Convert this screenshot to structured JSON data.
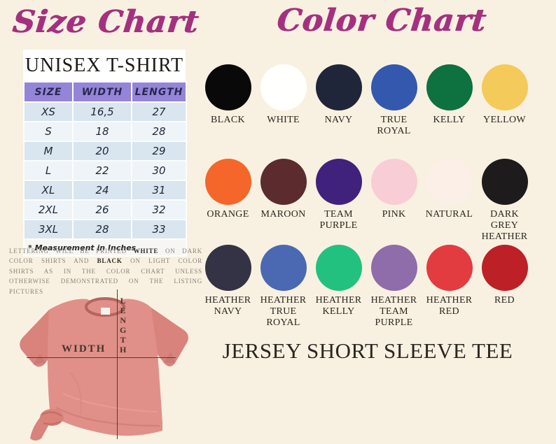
{
  "page": {
    "background": "#f8f1e1",
    "accent_magenta": "#a5307f"
  },
  "size_chart": {
    "title": "Size Chart",
    "product_type": "UNISEX T-SHIRT",
    "table": {
      "headers": [
        "SIZE",
        "WIDTH",
        "LENGTH"
      ],
      "rows": [
        [
          "XS",
          "16,5",
          "27"
        ],
        [
          "S",
          "18",
          "28"
        ],
        [
          "M",
          "20",
          "29"
        ],
        [
          "L",
          "22",
          "30"
        ],
        [
          "XL",
          "24",
          "31"
        ],
        [
          "2XL",
          "26",
          "32"
        ],
        [
          "3XL",
          "28",
          "33"
        ]
      ],
      "footnote": "* Measurement in Inches",
      "header_bg": "#9585d9",
      "row_colors": [
        "#d9e5ef",
        "#eef4f8"
      ]
    },
    "note": {
      "p1": "Lettering will be printed ",
      "bold1": "white",
      "p2": " on dark color shirts and ",
      "bold2": "black",
      "p3": " on light color shirts as in the color chart unless otherwise demonstrated on the listing pictures"
    }
  },
  "tshirt": {
    "width_label": "WIDTH",
    "length_label": "LENGTH",
    "shirt_color": "#e09089"
  },
  "color_chart": {
    "title": "Color Chart",
    "rows": [
      [
        {
          "name": "BLACK",
          "hex": "#090909"
        },
        {
          "name": "WHITE",
          "hex": "#fffffd"
        },
        {
          "name": "NAVY",
          "hex": "#202639"
        },
        {
          "name": "TRUE ROYAL",
          "hex": "#3458ae"
        },
        {
          "name": "KELLY",
          "hex": "#0d7140"
        },
        {
          "name": "YELLOW",
          "hex": "#f4ca5a"
        }
      ],
      [
        {
          "name": "ORANGE",
          "hex": "#f4662a"
        },
        {
          "name": "MAROON",
          "hex": "#5b2b2e"
        },
        {
          "name": "TEAM PURPLE",
          "hex": "#40217c"
        },
        {
          "name": "PINK",
          "hex": "#f9cdd5"
        },
        {
          "name": "NATURAL",
          "hex": "#fbefe8"
        },
        {
          "name": "DARK GREY HEATHER",
          "hex": "#1d1b1b"
        }
      ],
      [
        {
          "name": "HEATHER NAVY",
          "hex": "#343245"
        },
        {
          "name": "HEATHER TRUE ROYAL",
          "hex": "#4a69b2"
        },
        {
          "name": "HEATHER KELLY",
          "hex": "#22c180"
        },
        {
          "name": "HEATHER TEAM PURPLE",
          "hex": "#8f6caa"
        },
        {
          "name": "HEATHER RED",
          "hex": "#e23b40"
        },
        {
          "name": "RED",
          "hex": "#bd2026"
        }
      ]
    ],
    "product_name": "JERSEY SHORT SLEEVE TEE"
  }
}
